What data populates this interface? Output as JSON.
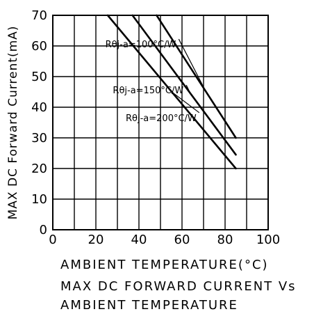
{
  "chart_data": {
    "type": "line",
    "xlabel": "AMBIENT TEMPERATURE(°C)",
    "ylabel": "MAX DC Forward Current(mA)",
    "xlim": [
      0,
      100
    ],
    "ylim": [
      0,
      70
    ],
    "x_ticks": [
      "0",
      "20",
      "40",
      "60",
      "80",
      "100"
    ],
    "y_ticks": [
      "0",
      "10",
      "20",
      "30",
      "40",
      "50",
      "60",
      "70"
    ],
    "grid": true,
    "series": [
      {
        "name": "Rθj-a=100°C/W",
        "x": [
          48.2,
          85
        ],
        "y": [
          70,
          30
        ]
      },
      {
        "name": "Rθj-a=150°C/W",
        "x": [
          37,
          85
        ],
        "y": [
          70,
          24.5
        ]
      },
      {
        "name": "Rθj-a=200°C/W",
        "x": [
          25.5,
          85
        ],
        "y": [
          70,
          20
        ]
      }
    ],
    "annotations": [
      {
        "text": "Rθj-a=100°C/W",
        "x": 58.5,
        "y": 59.5
      },
      {
        "text": "Rθj-a=150°C/W",
        "x": 62,
        "y": 44.5
      },
      {
        "text": "Rθj-a=200°C/W",
        "x": 68,
        "y": 35.5
      }
    ]
  },
  "captions": {
    "x_axis_title": "AMBIENT TEMPERATURE(°C)",
    "line1": "MAX DC FORWARD CURRENT Vs",
    "line2": "AMBIENT TEMPERATURE"
  }
}
